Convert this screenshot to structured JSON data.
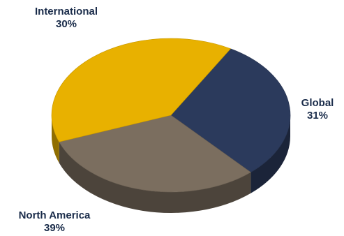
{
  "chart_data": {
    "type": "pie",
    "style": "3d",
    "title": "",
    "slices": [
      {
        "label": "International",
        "value": 30,
        "value_label": "30%",
        "color": "#2b3a5c"
      },
      {
        "label": "Global",
        "value": 31,
        "value_label": "31%",
        "color": "#7b6e5f"
      },
      {
        "label": "North America",
        "value": 39,
        "value_label": "39%",
        "color": "#e8b100"
      }
    ]
  },
  "colors": {
    "label_text": "#1a2c4a",
    "background": "#ffffff"
  }
}
